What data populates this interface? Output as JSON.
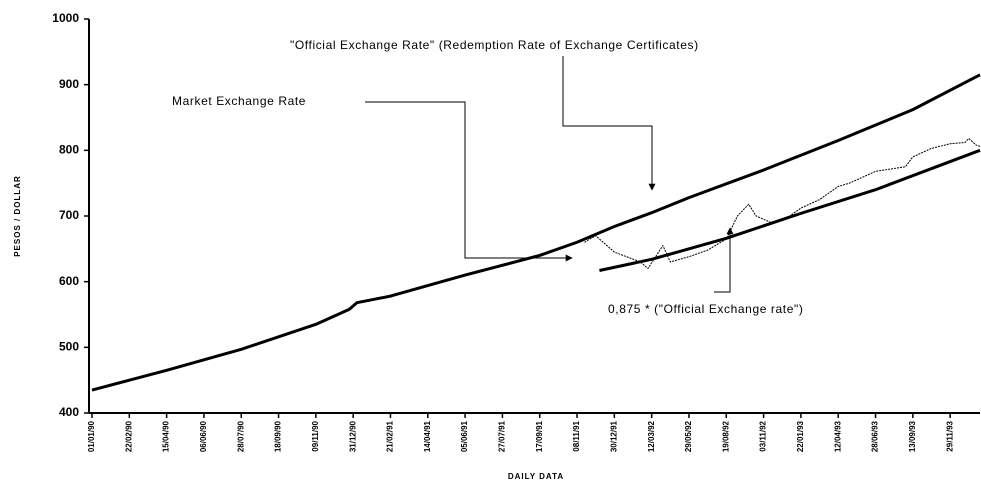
{
  "chart_data": {
    "type": "line",
    "y_label": "PESOS / DOLLAR",
    "x_label": "DAILY DATA",
    "xlim": [
      0,
      23.8
    ],
    "xticks": [
      {
        "value": 0,
        "label": "01/01/90"
      },
      {
        "value": 1,
        "label": "22/02/90"
      },
      {
        "value": 2,
        "label": "15/04/90"
      },
      {
        "value": 3,
        "label": "06/06/90"
      },
      {
        "value": 4,
        "label": "28/07/90"
      },
      {
        "value": 5,
        "label": "18/09/90"
      },
      {
        "value": 6,
        "label": "09/11/90"
      },
      {
        "value": 7,
        "label": "31/12/90"
      },
      {
        "value": 8,
        "label": "21/02/91"
      },
      {
        "value": 9,
        "label": "14/04/91"
      },
      {
        "value": 10,
        "label": "05/06/91"
      },
      {
        "value": 11,
        "label": "27/07/91"
      },
      {
        "value": 12,
        "label": "17/09/91"
      },
      {
        "value": 13,
        "label": "08/11/91"
      },
      {
        "value": 14,
        "label": "30/12/91"
      },
      {
        "value": 15,
        "label": "12/03/92"
      },
      {
        "value": 16,
        "label": "29/05/92"
      },
      {
        "value": 17,
        "label": "19/08/92"
      },
      {
        "value": 18,
        "label": "03/11/92"
      },
      {
        "value": 19,
        "label": "22/01/93"
      },
      {
        "value": 20,
        "label": "12/04/93"
      },
      {
        "value": 21,
        "label": "28/06/93"
      },
      {
        "value": 22,
        "label": "13/09/93"
      },
      {
        "value": 23,
        "label": "29/11/93"
      }
    ],
    "ylim": [
      400,
      1000
    ],
    "yticks": [
      400,
      500,
      600,
      700,
      800,
      900,
      1000
    ],
    "series": [
      {
        "name": "\"Official Exchange Rate\"  (Redemption Rate of Exchange Certificates)",
        "color": "#000000",
        "x": [
          0,
          2,
          4,
          6,
          6.9,
          7.1,
          8,
          10,
          12,
          13,
          13.5,
          14,
          15,
          16,
          18,
          20,
          22,
          23.8
        ],
        "values": [
          435,
          465,
          497,
          535,
          558,
          568,
          578,
          610,
          640,
          660,
          672,
          684,
          705,
          728,
          770,
          815,
          862,
          915
        ]
      },
      {
        "name": "Market Exchange Rate",
        "color": "#000000",
        "x": [
          13.2,
          13.5,
          14,
          14.7,
          14.9,
          15.3,
          15.5,
          16,
          16.5,
          17,
          17.3,
          17.6,
          17.8,
          18.2,
          18.7,
          19,
          19.5,
          20,
          20.3,
          21,
          21.8,
          22,
          22.5,
          23,
          23.4,
          23.5,
          23.7,
          23.8
        ],
        "values": [
          660,
          670,
          645,
          630,
          620,
          655,
          630,
          638,
          648,
          665,
          700,
          718,
          700,
          690,
          700,
          712,
          725,
          745,
          750,
          768,
          775,
          790,
          803,
          810,
          812,
          818,
          808,
          806
        ]
      },
      {
        "name": "0,875 * (\"Official Exchange rate\")",
        "color": "#000000",
        "x": [
          13.6,
          15,
          17,
          19,
          21,
          23.8
        ],
        "values": [
          617,
          634,
          666,
          704,
          740,
          800
        ]
      }
    ]
  }
}
